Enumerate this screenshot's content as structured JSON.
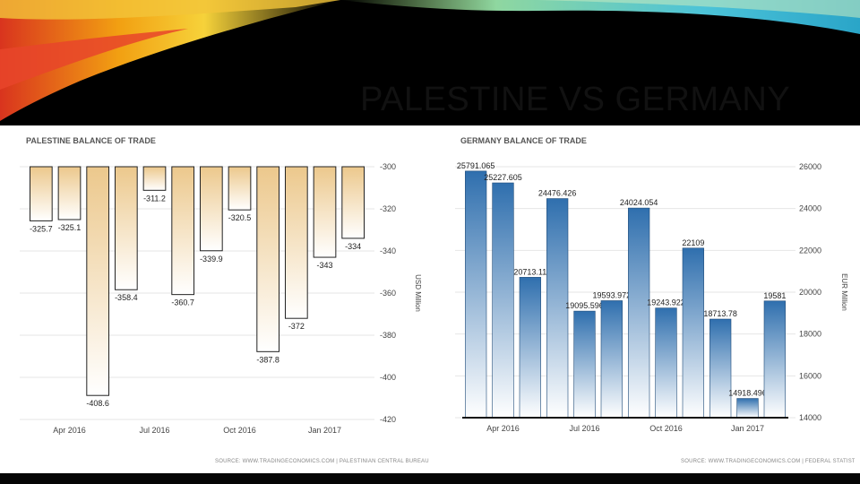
{
  "slide": {
    "title": "PALESTINE VS GERMANY"
  },
  "chart_data": [
    {
      "type": "bar",
      "title": "PALESTINE BALANCE OF TRADE",
      "ylabel": "USD Million",
      "x_ticks": [
        "Apr 2016",
        "Jul 2016",
        "Oct 2016",
        "Jan 2017"
      ],
      "y_ticks": [
        "-300",
        "-320",
        "-340",
        "-360",
        "-380",
        "-400",
        "-420"
      ],
      "ylim": [
        -420,
        -300
      ],
      "grid": true,
      "values": [
        -325.7,
        -325.1,
        -408.6,
        -358.4,
        -311.2,
        -360.7,
        -339.9,
        -320.5,
        -387.8,
        -372,
        -343,
        -334
      ],
      "value_labels": [
        "-325.7",
        "-325.1",
        "-408.6",
        "-358.4",
        "-311.2",
        "-360.7",
        "-339.9",
        "-320.5",
        "-387.8",
        "-372",
        "-343",
        "-334"
      ],
      "source": "SOURCE: WWW.TRADINGECONOMICS.COM | PALESTINIAN CENTRAL BUREAU OF STATISTICS",
      "color": "#e8c48a"
    },
    {
      "type": "bar",
      "title": "GERMANY BALANCE OF TRADE",
      "ylabel": "EUR Million",
      "x_ticks": [
        "Apr 2016",
        "Jul 2016",
        "Oct 2016",
        "Jan 2017"
      ],
      "y_ticks": [
        "26000",
        "24000",
        "22000",
        "20000",
        "18000",
        "16000",
        "14000"
      ],
      "ylim": [
        14000,
        26000
      ],
      "grid": true,
      "values": [
        25791.065,
        25227.605,
        20713.11,
        24476.426,
        19095.596,
        19593.972,
        24024.054,
        19243.922,
        22109,
        18713.78,
        14918.496,
        19581
      ],
      "value_labels": [
        "25791.065",
        "25227.605",
        "20713.11",
        "24476.426",
        "19095.596",
        "19593.972",
        "24024.054",
        "19243.922",
        "22109",
        "18713.78",
        "14918.496",
        "19581"
      ],
      "source": "SOURCE: WWW.TRADINGECONOMICS.COM | FEDERAL STATISTICAL OFFICE",
      "color": "#3f7fb8"
    }
  ]
}
